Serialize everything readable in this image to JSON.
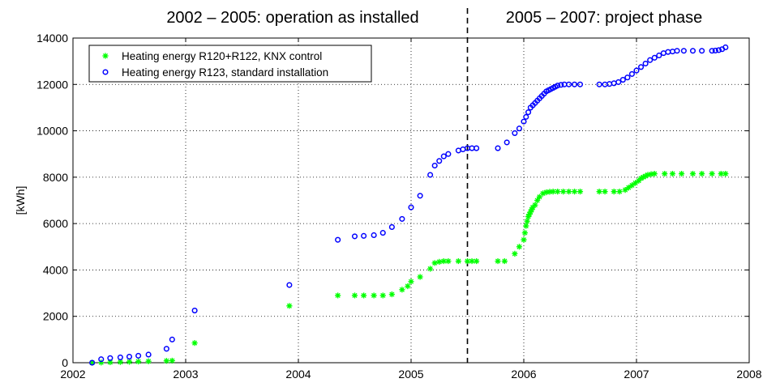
{
  "chart_data": {
    "type": "scatter",
    "title": "",
    "xlabel": "",
    "ylabel": "[kWh]",
    "xlim": [
      2002,
      2008
    ],
    "ylim": [
      0,
      14000
    ],
    "xticks": [
      2002,
      2003,
      2004,
      2005,
      2006,
      2007,
      2008
    ],
    "yticks": [
      0,
      2000,
      4000,
      6000,
      8000,
      10000,
      12000,
      14000
    ],
    "grid": true,
    "legend_position": "top-left",
    "divider_x": 2005.5,
    "phase_labels": [
      "2002 – 2005: operation as installed",
      "2005 – 2007: project phase"
    ],
    "series": [
      {
        "name": "Heating energy R120+R122, KNX control",
        "marker": "asterisk",
        "color": "#00ff00",
        "x": [
          2002.17,
          2002.25,
          2002.33,
          2002.42,
          2002.5,
          2002.58,
          2002.67,
          2002.83,
          2002.88,
          2003.08,
          2003.92,
          2004.35,
          2004.5,
          2004.58,
          2004.67,
          2004.75,
          2004.83,
          2004.92,
          2004.97,
          2005.0,
          2005.08,
          2005.17,
          2005.21,
          2005.25,
          2005.29,
          2005.33,
          2005.42,
          2005.5,
          2005.54,
          2005.58,
          2005.77,
          2005.83,
          2005.92,
          2005.96,
          2006.0,
          2006.01,
          2006.02,
          2006.03,
          2006.04,
          2006.05,
          2006.06,
          2006.07,
          2006.08,
          2006.1,
          2006.12,
          2006.14,
          2006.17,
          2006.2,
          2006.23,
          2006.26,
          2006.3,
          2006.35,
          2006.4,
          2006.45,
          2006.5,
          2006.67,
          2006.72,
          2006.8,
          2006.85,
          2006.9,
          2006.93,
          2006.96,
          2006.99,
          2007.02,
          2007.04,
          2007.06,
          2007.08,
          2007.1,
          2007.13,
          2007.16,
          2007.25,
          2007.32,
          2007.4,
          2007.5,
          2007.58,
          2007.67,
          2007.75,
          2007.79
        ],
        "y": [
          0,
          10,
          20,
          30,
          40,
          50,
          60,
          80,
          90,
          850,
          2450,
          2900,
          2900,
          2900,
          2900,
          2900,
          2950,
          3150,
          3300,
          3500,
          3700,
          4050,
          4300,
          4350,
          4380,
          4380,
          4380,
          4380,
          4380,
          4380,
          4380,
          4380,
          4700,
          5000,
          5300,
          5600,
          5900,
          6100,
          6300,
          6400,
          6500,
          6600,
          6700,
          6800,
          7000,
          7150,
          7300,
          7350,
          7370,
          7380,
          7380,
          7380,
          7380,
          7380,
          7380,
          7380,
          7380,
          7380,
          7380,
          7450,
          7550,
          7650,
          7750,
          7850,
          7950,
          8000,
          8050,
          8100,
          8130,
          8150,
          8150,
          8150,
          8150,
          8150,
          8150,
          8150,
          8150,
          8150
        ]
      },
      {
        "name": "Heating energy R123, standard installation",
        "marker": "circle",
        "color": "#0000ff",
        "x": [
          2002.17,
          2002.25,
          2002.33,
          2002.42,
          2002.5,
          2002.58,
          2002.67,
          2002.83,
          2002.88,
          2003.08,
          2003.92,
          2004.35,
          2004.5,
          2004.58,
          2004.67,
          2004.75,
          2004.83,
          2004.92,
          2005.0,
          2005.08,
          2005.17,
          2005.21,
          2005.25,
          2005.29,
          2005.33,
          2005.42,
          2005.46,
          2005.5,
          2005.54,
          2005.58,
          2005.77,
          2005.85,
          2005.92,
          2005.96,
          2006.0,
          2006.02,
          2006.04,
          2006.06,
          2006.08,
          2006.1,
          2006.12,
          2006.14,
          2006.16,
          2006.18,
          2006.2,
          2006.22,
          2006.24,
          2006.26,
          2006.28,
          2006.3,
          2006.33,
          2006.36,
          2006.4,
          2006.45,
          2006.5,
          2006.67,
          2006.72,
          2006.76,
          2006.8,
          2006.84,
          2006.88,
          2006.92,
          2006.96,
          2007.0,
          2007.04,
          2007.08,
          2007.12,
          2007.16,
          2007.2,
          2007.24,
          2007.28,
          2007.32,
          2007.36,
          2007.42,
          2007.5,
          2007.58,
          2007.67,
          2007.7,
          2007.73,
          2007.76,
          2007.79
        ],
        "y": [
          0,
          150,
          200,
          230,
          260,
          300,
          350,
          600,
          1000,
          2250,
          3350,
          5300,
          5450,
          5470,
          5500,
          5600,
          5850,
          6200,
          6700,
          7200,
          8100,
          8500,
          8700,
          8900,
          9000,
          9150,
          9200,
          9250,
          9250,
          9250,
          9250,
          9500,
          9900,
          10100,
          10400,
          10600,
          10800,
          11000,
          11100,
          11200,
          11300,
          11400,
          11500,
          11600,
          11700,
          11750,
          11800,
          11850,
          11900,
          11950,
          11980,
          12000,
          12000,
          12000,
          12000,
          12000,
          12000,
          12020,
          12050,
          12100,
          12200,
          12300,
          12450,
          12600,
          12750,
          12900,
          13050,
          13150,
          13250,
          13350,
          13400,
          13420,
          13450,
          13450,
          13450,
          13450,
          13450,
          13460,
          13480,
          13520,
          13600
        ]
      }
    ]
  }
}
